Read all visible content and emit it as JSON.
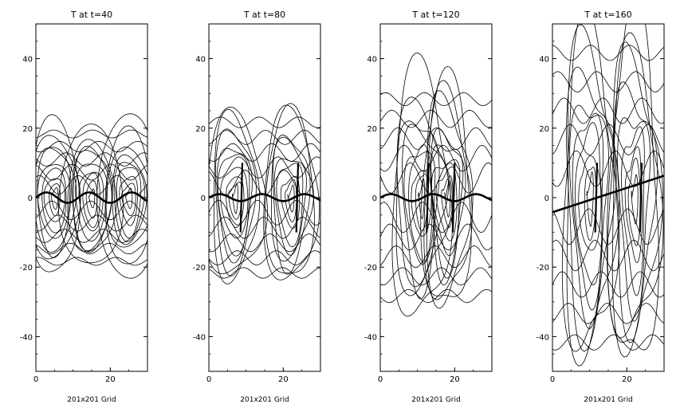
{
  "chart_data": [
    {
      "type": "contour",
      "title": "T at t=40",
      "xlabel": "201x201 Grid",
      "xlim": [
        0,
        30
      ],
      "ylim": [
        -50,
        50
      ],
      "xticks": [
        "0",
        "20"
      ],
      "yticks": [
        "40",
        "20",
        "0",
        "-20",
        "-40"
      ],
      "grid": false
    },
    {
      "type": "contour",
      "title": "T at t=80",
      "xlabel": "201x201 Grid",
      "xlim": [
        0,
        30
      ],
      "ylim": [
        -50,
        50
      ],
      "xticks": [
        "0",
        "20"
      ],
      "yticks": [
        "40",
        "20",
        "0",
        "-20",
        "-40"
      ],
      "grid": false
    },
    {
      "type": "contour",
      "title": "T at t=120",
      "xlabel": "201x201 Grid",
      "xlim": [
        0,
        30
      ],
      "ylim": [
        -50,
        50
      ],
      "xticks": [
        "0",
        "20"
      ],
      "yticks": [
        "40",
        "20",
        "0",
        "-20",
        "-40"
      ],
      "grid": false
    },
    {
      "type": "contour",
      "title": "T at t=160",
      "xlabel": "201x201 Grid",
      "xlim": [
        0,
        30
      ],
      "ylim": [
        -50,
        50
      ],
      "xticks": [
        "0",
        "20"
      ],
      "yticks": [
        "40",
        "20",
        "0",
        "-20",
        "-40"
      ],
      "grid": false
    }
  ]
}
